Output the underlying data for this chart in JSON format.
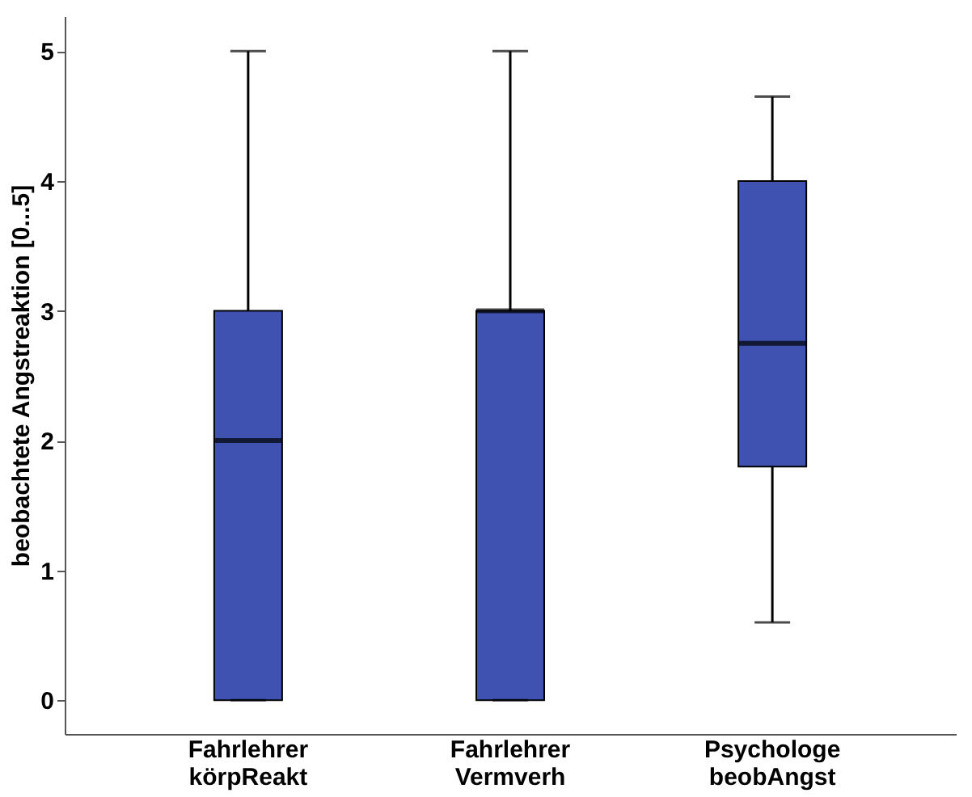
{
  "chart_data": {
    "type": "box",
    "ylabel": "beobachtete Angstreaktion [0...5]",
    "categories": [
      "Fahrlehrer körpReakt",
      "Fahrlehrer Vermverh",
      "Psychologe beobAngst"
    ],
    "color": "#3f51b1",
    "boxes": [
      {
        "low": 0,
        "q1": 0,
        "median": 2,
        "q3": 3,
        "high": 5
      },
      {
        "low": 0,
        "q1": 0,
        "median": 3,
        "q3": 3,
        "high": 5
      },
      {
        "low": 0.6,
        "q1": 1.8,
        "median": 2.75,
        "q3": 4,
        "high": 4.65
      }
    ],
    "ylim": [
      -0.26,
      5.27
    ],
    "yticks": [
      0,
      1,
      2,
      3,
      4,
      5
    ],
    "grid": false
  }
}
